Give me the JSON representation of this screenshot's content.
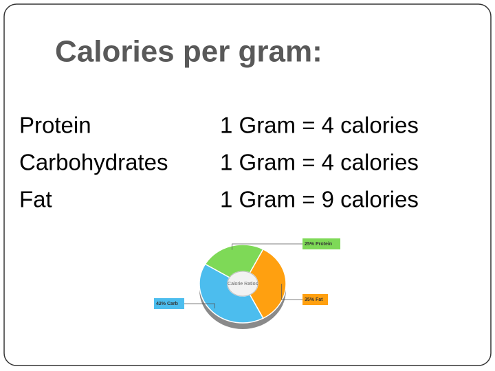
{
  "title": "Calories per gram:",
  "rows": [
    [
      "Protein",
      "1 Gram = 4 calories"
    ],
    [
      "Carbohydrates",
      "1 Gram = 4 calories"
    ],
    [
      "Fat",
      "1 Gram = 9 calories"
    ]
  ],
  "chart_data": {
    "type": "pie",
    "center_label": "Calorie Ratios",
    "values": [
      25,
      35,
      42
    ],
    "value_labels": [
      "25% Protein",
      "35% Fat",
      "42% Carb"
    ],
    "colors": [
      "#7ed957",
      "#ffa010",
      "#4cbdee"
    ]
  }
}
